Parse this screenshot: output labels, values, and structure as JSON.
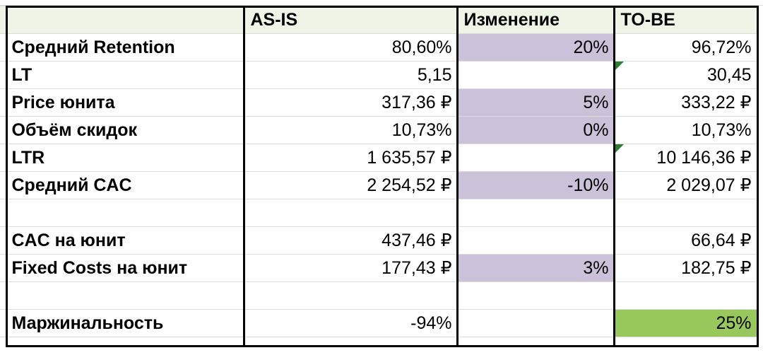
{
  "headers": {
    "col_asis": "AS-IS",
    "col_change": "Изменение",
    "col_tobe": "TO-BE"
  },
  "rows": [
    {
      "label": "Средний Retention",
      "asis": "80,60%",
      "change": "20%",
      "tobe": "96,72%"
    },
    {
      "label": "LT",
      "asis": "5,15",
      "change": "",
      "tobe": "30,45"
    },
    {
      "label": "Price юнита",
      "asis": "317,36 ₽",
      "change": "5%",
      "tobe": "333,22 ₽"
    },
    {
      "label": "Объём скидок",
      "asis": "10,73%",
      "change": "0%",
      "tobe": "10,73%"
    },
    {
      "label": "LTR",
      "asis": "1 635,57 ₽",
      "change": "",
      "tobe": "10 146,36 ₽"
    },
    {
      "label": "Средний CAC",
      "asis": "2 254,52 ₽",
      "change": "-10%",
      "tobe": "2 029,07 ₽"
    },
    {
      "label": "",
      "asis": "",
      "change": "",
      "tobe": ""
    },
    {
      "label": "CAC на юнит",
      "asis": "437,46 ₽",
      "change": "",
      "tobe": "66,64 ₽"
    },
    {
      "label": "Fixed Costs на юнит",
      "asis": "177,43 ₽",
      "change": "3%",
      "tobe": "182,75 ₽"
    },
    {
      "label": "",
      "asis": "",
      "change": "",
      "tobe": ""
    },
    {
      "label": "Маржинальность",
      "asis": "-94%",
      "change": "",
      "tobe": "25%"
    }
  ],
  "colors": {
    "header_fill": "#eef5e6",
    "change_fill": "#cbc2d9",
    "result_fill": "#98c85c",
    "comment_marker": "#2f7d32"
  }
}
